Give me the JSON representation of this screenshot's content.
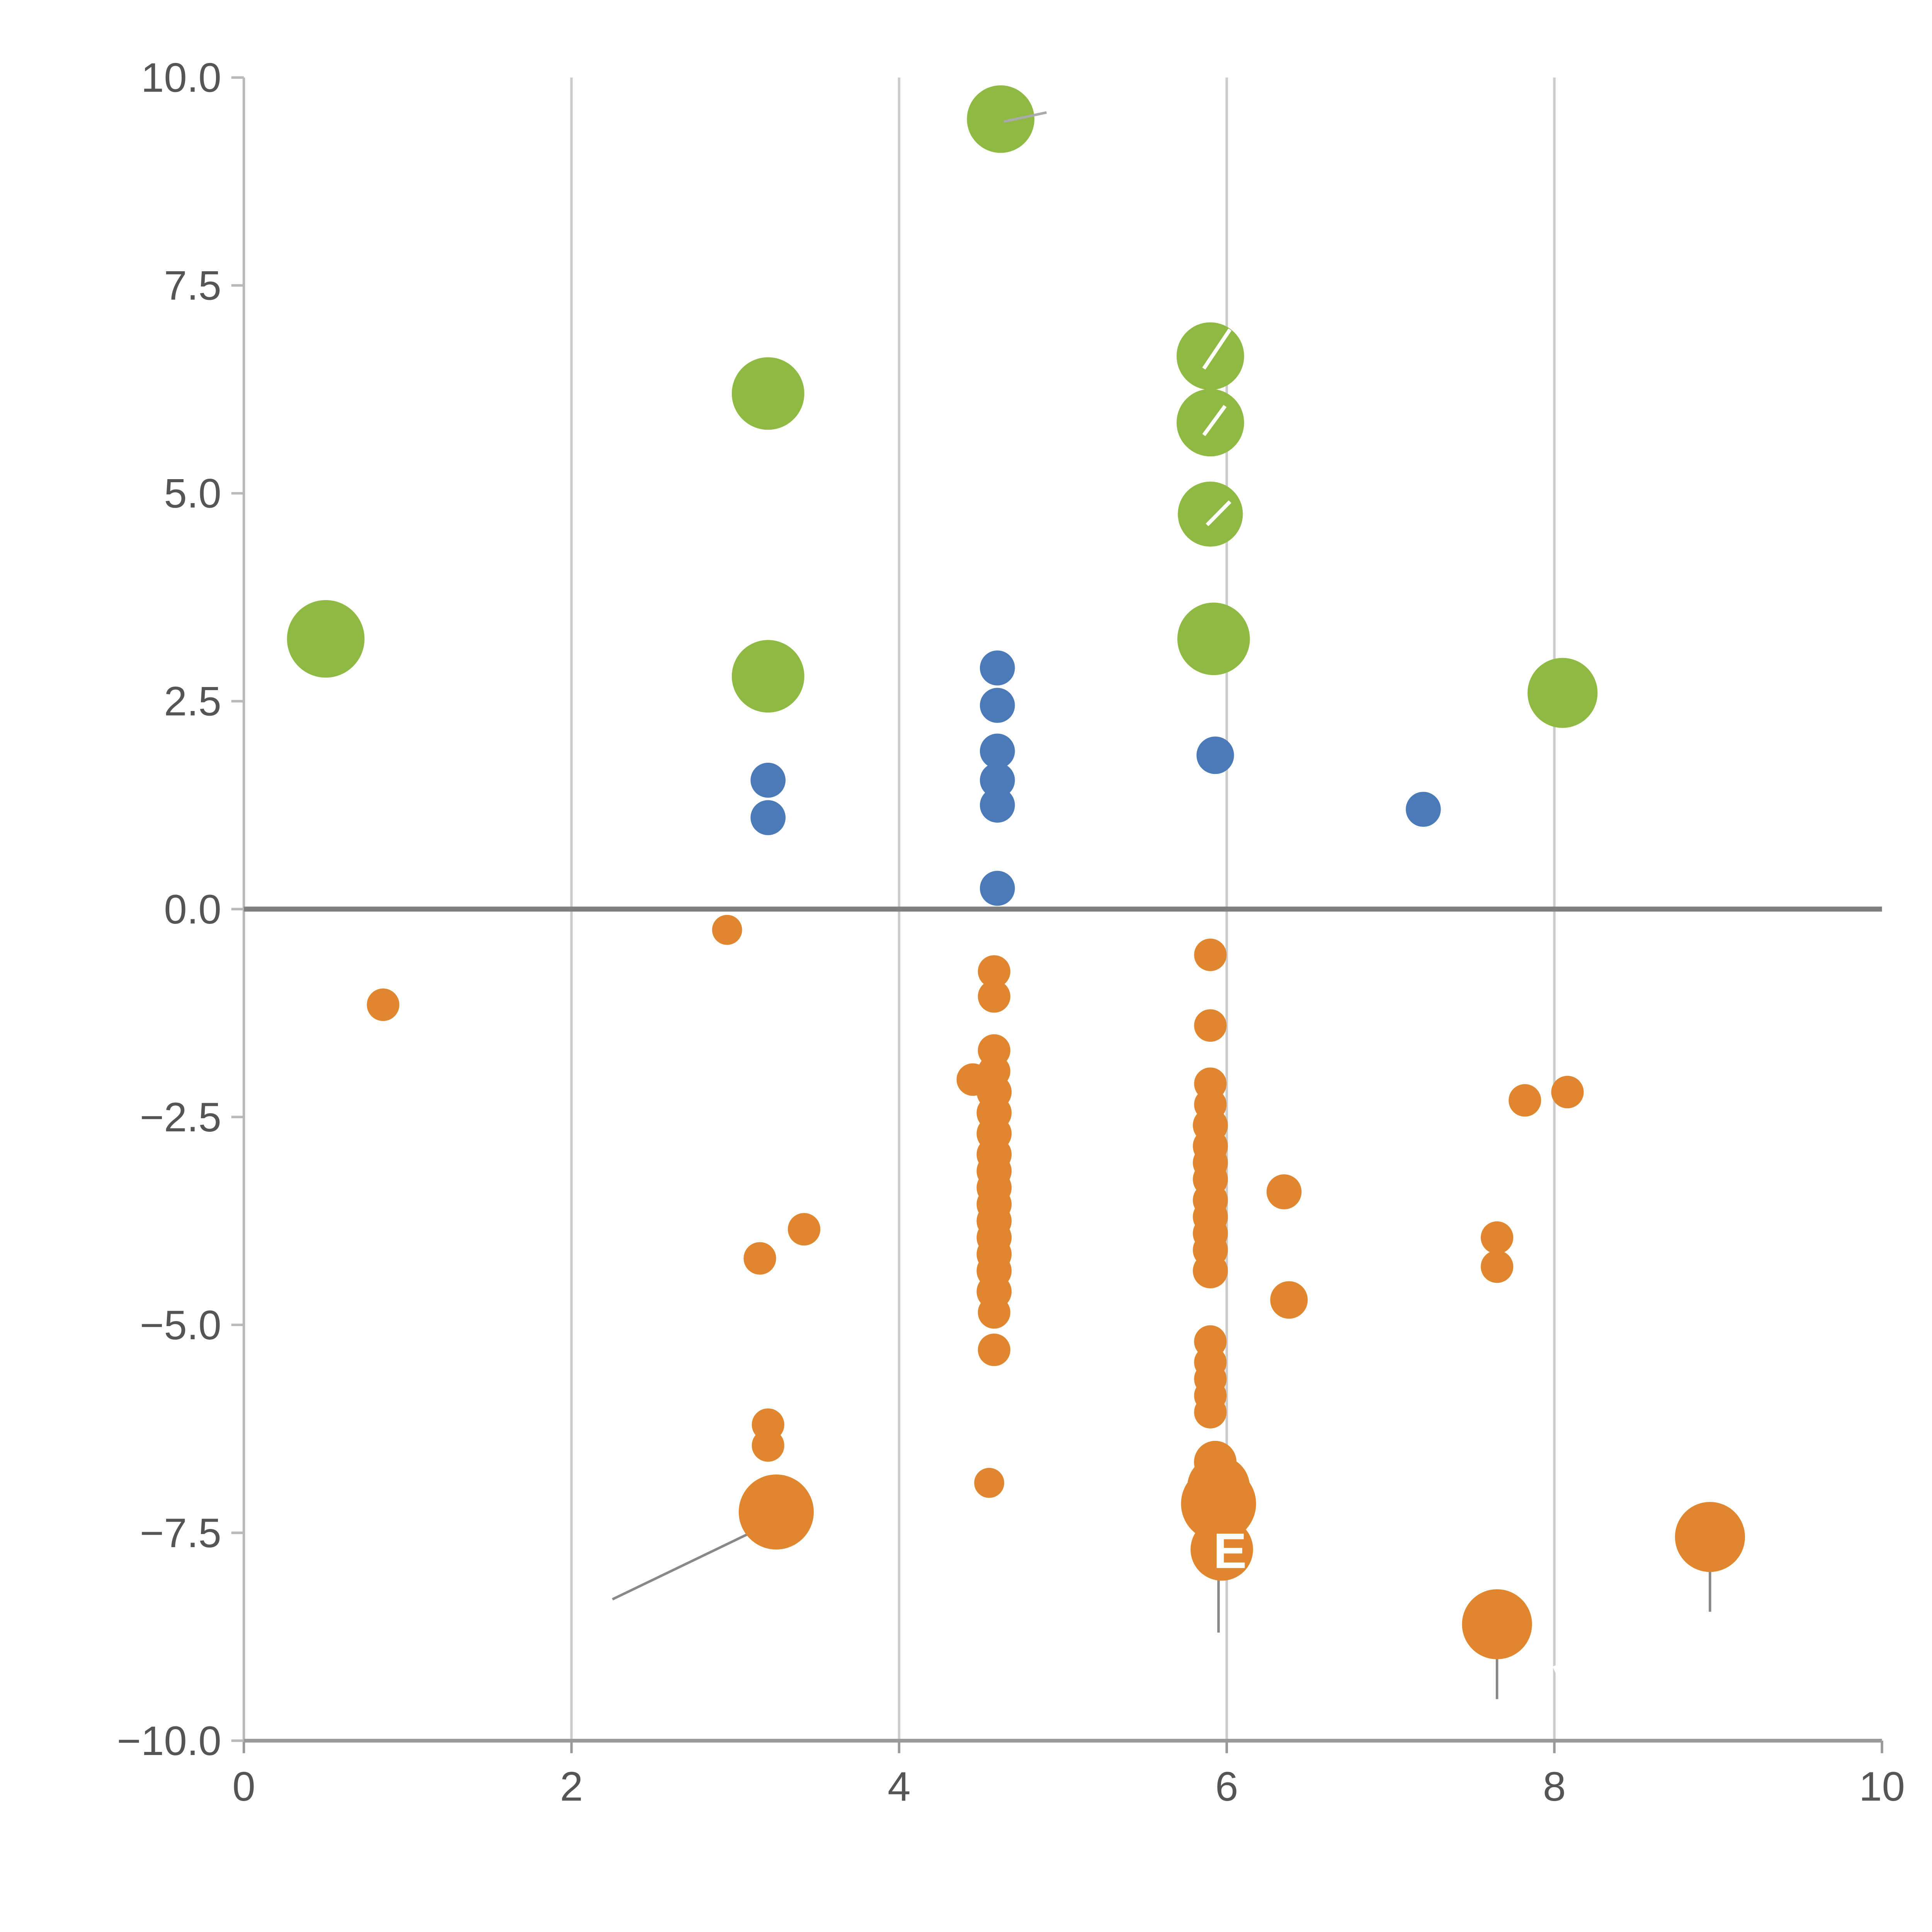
{
  "chart_data": {
    "type": "scatter",
    "title": "",
    "xlabel": "",
    "ylabel": "",
    "xlim": [
      0,
      10
    ],
    "ylim": [
      -10,
      10
    ],
    "grid": "vertical-only",
    "grid_x": [
      2,
      4,
      6,
      8
    ],
    "x_ticks": [
      0,
      2,
      4,
      6,
      8,
      10
    ],
    "x_tick_labels": [
      "0",
      "2",
      "4",
      "6",
      "8",
      "10"
    ],
    "y_ticks": [
      -10.0,
      -7.5,
      -5.0,
      -2.5,
      0.0,
      2.5,
      5.0,
      7.5,
      10.0
    ],
    "y_tick_labels": [
      "−10.0",
      "−7.5",
      "−5.0",
      "−2.5",
      "0.0",
      "2.5",
      "5.0",
      "7.5",
      "10.0"
    ],
    "zero_line_y": 0,
    "colors": {
      "green": "#8eba43",
      "blue": "#4a7ab7",
      "orange": "#e0862e",
      "grid": "#cccccc",
      "axis": "#9a9a9a",
      "zero_line": "#7f7f7f",
      "leader_line": "#888888"
    },
    "series": [
      {
        "name": "green",
        "color": "#8eba43",
        "points": [
          {
            "x": 0.5,
            "y": 3.25,
            "r": 31
          },
          {
            "x": 3.2,
            "y": 6.2,
            "r": 29
          },
          {
            "x": 3.2,
            "y": 2.8,
            "r": 29
          },
          {
            "x": 4.62,
            "y": 9.5,
            "r": 27
          },
          {
            "x": 5.9,
            "y": 6.65,
            "r": 27
          },
          {
            "x": 5.9,
            "y": 5.85,
            "r": 27
          },
          {
            "x": 5.9,
            "y": 4.75,
            "r": 26
          },
          {
            "x": 5.92,
            "y": 3.25,
            "r": 29
          },
          {
            "x": 8.05,
            "y": 2.6,
            "r": 28
          }
        ]
      },
      {
        "name": "blue",
        "color": "#4a7ab7",
        "points": [
          {
            "x": 3.2,
            "y": 1.55,
            "r": 14
          },
          {
            "x": 3.2,
            "y": 1.1,
            "r": 14
          },
          {
            "x": 4.6,
            "y": 2.9,
            "r": 14
          },
          {
            "x": 4.6,
            "y": 2.45,
            "r": 14
          },
          {
            "x": 4.6,
            "y": 1.9,
            "r": 14
          },
          {
            "x": 4.6,
            "y": 1.55,
            "r": 14
          },
          {
            "x": 4.6,
            "y": 1.25,
            "r": 14
          },
          {
            "x": 4.6,
            "y": 0.25,
            "r": 14
          },
          {
            "x": 5.93,
            "y": 1.85,
            "r": 15
          },
          {
            "x": 7.2,
            "y": 1.2,
            "r": 14
          }
        ]
      },
      {
        "name": "orange",
        "color": "#e0862e",
        "points": [
          {
            "x": 0.85,
            "y": -1.15,
            "r": 13
          },
          {
            "x": 2.95,
            "y": -0.25,
            "r": 12
          },
          {
            "x": 3.15,
            "y": -4.2,
            "r": 13
          },
          {
            "x": 3.42,
            "y": -3.85,
            "r": 13
          },
          {
            "x": 3.2,
            "y": -6.2,
            "r": 13
          },
          {
            "x": 3.2,
            "y": -6.45,
            "r": 13
          },
          {
            "x": 3.25,
            "y": -7.25,
            "r": 30
          },
          {
            "x": 4.58,
            "y": -0.75,
            "r": 13
          },
          {
            "x": 4.58,
            "y": -1.05,
            "r": 13
          },
          {
            "x": 4.45,
            "y": -2.05,
            "r": 13
          },
          {
            "x": 4.58,
            "y": -1.7,
            "r": 13
          },
          {
            "x": 4.58,
            "y": -1.95,
            "r": 13
          },
          {
            "x": 4.58,
            "y": -2.2,
            "r": 14
          },
          {
            "x": 4.58,
            "y": -2.45,
            "r": 14
          },
          {
            "x": 4.58,
            "y": -2.7,
            "r": 14
          },
          {
            "x": 4.58,
            "y": -2.95,
            "r": 14
          },
          {
            "x": 4.58,
            "y": -3.15,
            "r": 14
          },
          {
            "x": 4.58,
            "y": -3.35,
            "r": 14
          },
          {
            "x": 4.58,
            "y": -3.55,
            "r": 14
          },
          {
            "x": 4.58,
            "y": -3.75,
            "r": 14
          },
          {
            "x": 4.58,
            "y": -3.95,
            "r": 14
          },
          {
            "x": 4.58,
            "y": -4.15,
            "r": 14
          },
          {
            "x": 4.58,
            "y": -4.35,
            "r": 14
          },
          {
            "x": 4.58,
            "y": -4.6,
            "r": 14
          },
          {
            "x": 4.58,
            "y": -4.85,
            "r": 13
          },
          {
            "x": 4.58,
            "y": -5.3,
            "r": 13
          },
          {
            "x": 4.55,
            "y": -6.9,
            "r": 12
          },
          {
            "x": 5.9,
            "y": -0.55,
            "r": 13
          },
          {
            "x": 5.9,
            "y": -1.4,
            "r": 13
          },
          {
            "x": 5.9,
            "y": -2.1,
            "r": 13
          },
          {
            "x": 5.9,
            "y": -2.35,
            "r": 13
          },
          {
            "x": 5.9,
            "y": -2.6,
            "r": 14
          },
          {
            "x": 5.9,
            "y": -2.85,
            "r": 14
          },
          {
            "x": 5.9,
            "y": -3.05,
            "r": 14
          },
          {
            "x": 5.9,
            "y": -3.25,
            "r": 14
          },
          {
            "x": 5.9,
            "y": -3.5,
            "r": 14
          },
          {
            "x": 5.9,
            "y": -3.7,
            "r": 14
          },
          {
            "x": 5.9,
            "y": -3.9,
            "r": 14
          },
          {
            "x": 5.9,
            "y": -4.1,
            "r": 14
          },
          {
            "x": 5.9,
            "y": -4.35,
            "r": 14
          },
          {
            "x": 5.9,
            "y": -5.2,
            "r": 13
          },
          {
            "x": 5.9,
            "y": -5.45,
            "r": 13
          },
          {
            "x": 5.9,
            "y": -5.65,
            "r": 13
          },
          {
            "x": 5.9,
            "y": -5.85,
            "r": 13
          },
          {
            "x": 5.9,
            "y": -6.05,
            "r": 13
          },
          {
            "x": 5.93,
            "y": -6.65,
            "r": 17
          },
          {
            "x": 5.95,
            "y": -6.95,
            "r": 25
          },
          {
            "x": 5.95,
            "y": -7.15,
            "r": 30
          },
          {
            "x": 5.97,
            "y": -7.7,
            "r": 25
          },
          {
            "x": 6.35,
            "y": -3.4,
            "r": 14
          },
          {
            "x": 6.38,
            "y": -4.7,
            "r": 15
          },
          {
            "x": 7.65,
            "y": -3.95,
            "r": 13
          },
          {
            "x": 7.65,
            "y": -4.3,
            "r": 13
          },
          {
            "x": 7.82,
            "y": -2.3,
            "r": 13
          },
          {
            "x": 8.08,
            "y": -2.2,
            "r": 13
          },
          {
            "x": 7.65,
            "y": -8.6,
            "r": 28
          },
          {
            "x": 8.95,
            "y": -7.55,
            "r": 28
          }
        ]
      }
    ],
    "annotations": {
      "lines": [
        {
          "x1": 2.25,
          "y1": -8.3,
          "x2": 3.22,
          "y2": -7.38,
          "color": "#888888",
          "width": 2,
          "layer": "under"
        },
        {
          "x1": 5.95,
          "y1": -7.15,
          "x2": 5.95,
          "y2": -8.7,
          "color": "#888888",
          "width": 2,
          "layer": "under"
        },
        {
          "x1": 7.65,
          "y1": -8.6,
          "x2": 7.65,
          "y2": -9.5,
          "color": "#888888",
          "width": 2,
          "layer": "under"
        },
        {
          "x1": 8.95,
          "y1": -7.55,
          "x2": 8.95,
          "y2": -8.45,
          "color": "#888888",
          "width": 2,
          "layer": "under"
        },
        {
          "x1": 4.64,
          "y1": 9.47,
          "x2": 4.9,
          "y2": 9.58,
          "color": "#aaaaaa",
          "width": 2,
          "layer": "over"
        },
        {
          "x1": 5.86,
          "y1": 6.5,
          "x2": 6.02,
          "y2": 6.97,
          "color": "#ffffff",
          "width": 3,
          "layer": "over"
        },
        {
          "x1": 5.86,
          "y1": 5.7,
          "x2": 5.99,
          "y2": 6.05,
          "color": "#ffffff",
          "width": 3,
          "layer": "over"
        },
        {
          "x1": 5.88,
          "y1": 4.62,
          "x2": 6.02,
          "y2": 4.9,
          "color": "#ffffff",
          "width": 3,
          "layer": "over"
        },
        {
          "x1": 4.02,
          "y1": 7.2,
          "x2": 4.04,
          "y2": 6.85,
          "color": "#ffffff",
          "width": 3,
          "layer": "over"
        },
        {
          "x1": 8.0,
          "y1": -9.1,
          "x2": 8.08,
          "y2": -9.45,
          "color": "#ffffff",
          "width": 3,
          "layer": "over"
        }
      ],
      "point_labels": [
        {
          "text": "E",
          "x": 6.02,
          "y": -7.72,
          "color": "#ffffff",
          "size": 40
        }
      ]
    }
  }
}
